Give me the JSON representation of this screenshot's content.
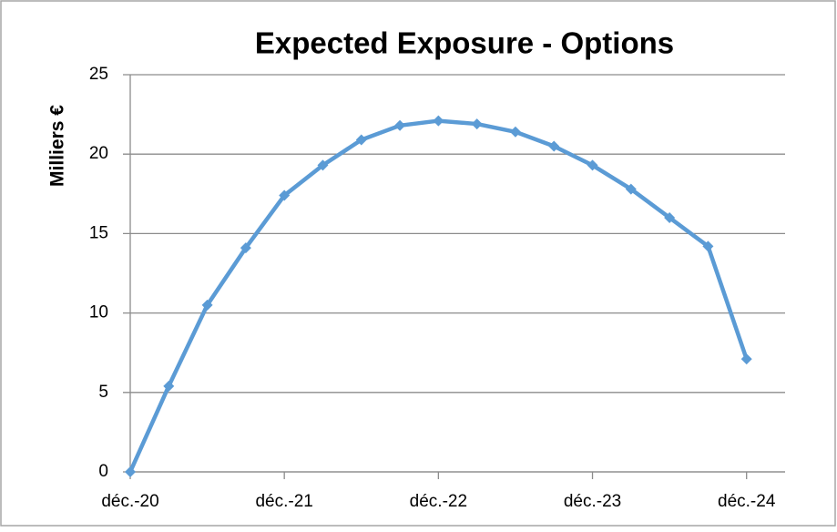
{
  "chart_data": {
    "type": "line",
    "title": "Expected Exposure - Options",
    "y_label": "Milliers €",
    "categories": [
      "déc.-20",
      null,
      null,
      null,
      "déc.-21",
      null,
      null,
      null,
      "déc.-22",
      null,
      null,
      null,
      "déc.-23",
      null,
      null,
      null,
      "déc.-24"
    ],
    "series": [
      {
        "name": "Expected Exposure",
        "color": "#5b9bd5",
        "values": [
          0,
          5.4,
          10.5,
          14.1,
          17.4,
          19.3,
          20.9,
          21.8,
          22.1,
          21.9,
          21.4,
          20.5,
          19.3,
          17.8,
          16.0,
          14.2,
          7.1
        ]
      }
    ],
    "ylim": [
      0,
      25
    ],
    "yticks": [
      0,
      5,
      10,
      15,
      20,
      25
    ],
    "grid": true
  }
}
